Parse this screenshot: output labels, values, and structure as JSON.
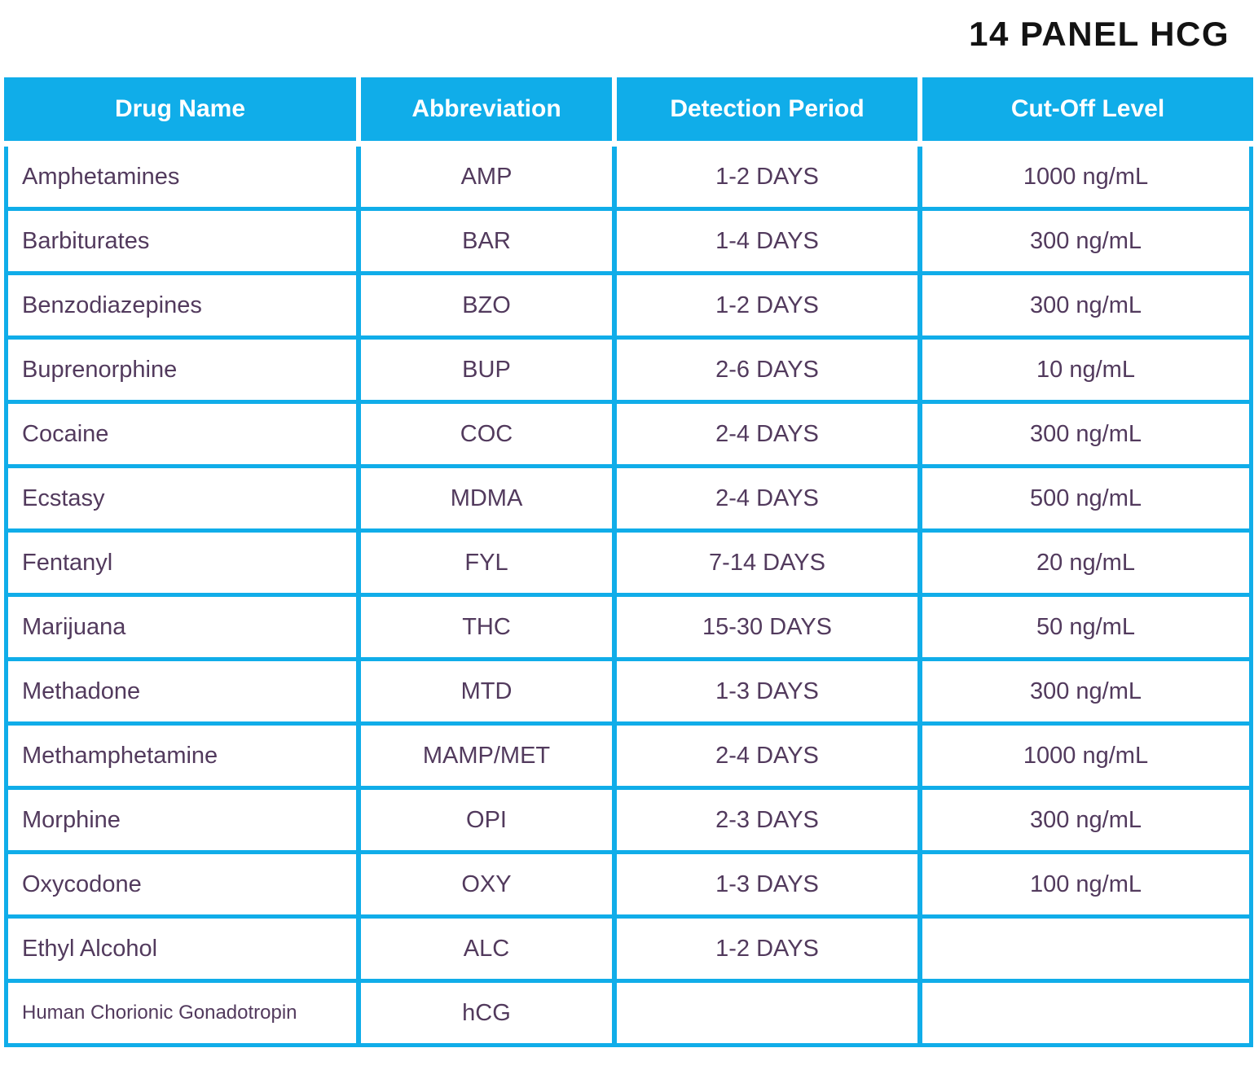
{
  "title": "14 PANEL HCG",
  "colors": {
    "accent": "#10ADE9",
    "row_text": "#523A5D",
    "header_text": "#FFFFFF",
    "title_text": "#131313"
  },
  "chart_data": {
    "type": "table",
    "title": "14 PANEL HCG",
    "columns": [
      "Drug Name",
      "Abbreviation",
      "Detection Period",
      "Cut-Off Level"
    ],
    "rows": [
      [
        "Amphetamines",
        "AMP",
        "1-2 DAYS",
        "1000 ng/mL"
      ],
      [
        "Barbiturates",
        "BAR",
        "1-4 DAYS",
        "300 ng/mL"
      ],
      [
        "Benzodiazepines",
        "BZO",
        "1-2 DAYS",
        "300 ng/mL"
      ],
      [
        "Buprenorphine",
        "BUP",
        "2-6 DAYS",
        "10 ng/mL"
      ],
      [
        "Cocaine",
        "COC",
        "2-4 DAYS",
        "300 ng/mL"
      ],
      [
        "Ecstasy",
        "MDMA",
        "2-4 DAYS",
        "500 ng/mL"
      ],
      [
        "Fentanyl",
        "FYL",
        "7-14 DAYS",
        "20 ng/mL"
      ],
      [
        "Marijuana",
        "THC",
        "15-30 DAYS",
        "50 ng/mL"
      ],
      [
        "Methadone",
        "MTD",
        "1-3 DAYS",
        "300 ng/mL"
      ],
      [
        "Methamphetamine",
        "MAMP/MET",
        "2-4 DAYS",
        "1000 ng/mL"
      ],
      [
        "Morphine",
        "OPI",
        "2-3 DAYS",
        "300 ng/mL"
      ],
      [
        "Oxycodone",
        "OXY",
        "1-3 DAYS",
        "100 ng/mL"
      ],
      [
        "Ethyl Alcohol",
        "ALC",
        "1-2 DAYS",
        ""
      ],
      [
        "Human Chorionic Gonadotropin",
        "hCG",
        "",
        ""
      ]
    ],
    "layout": {
      "header_fill": "#10ADE9",
      "grid": "on",
      "legend": "none"
    }
  }
}
